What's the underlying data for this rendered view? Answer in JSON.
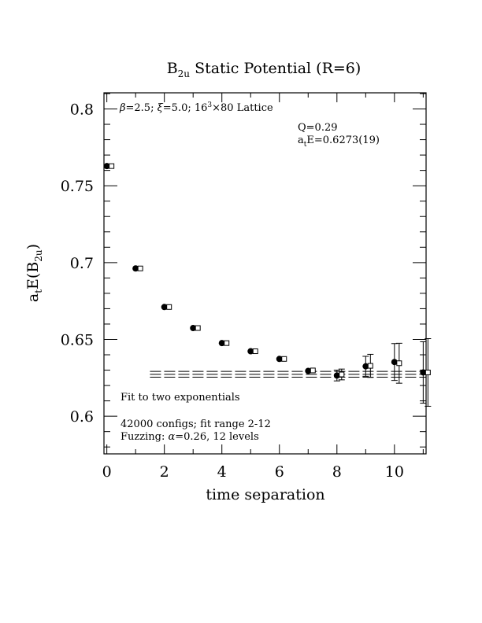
{
  "chart_data": {
    "type": "scatter",
    "title": {
      "main": "B",
      "sub": "2u",
      "rest": " Static Potential (R=6)"
    },
    "xlabel": "time separation",
    "ylabel": {
      "a": "a",
      "a_sub": "t",
      "mid": "E(B",
      "b_sub": "2u",
      "end": ")"
    },
    "xlim": [
      -0.1,
      11.1
    ],
    "ylim": [
      0.5755,
      0.8105
    ],
    "x_ticks": [
      0,
      2,
      4,
      6,
      8,
      10
    ],
    "x_tick_labels": [
      "0",
      "2",
      "4",
      "6",
      "8",
      "10"
    ],
    "y_ticks": [
      0.6,
      0.65,
      0.7,
      0.75,
      0.8
    ],
    "y_tick_labels": [
      "0.6",
      "0.65",
      "0.7",
      "0.75",
      "0.8"
    ],
    "annotations": {
      "lattice": {
        "beta": "β",
        "rest1": "=2.5; ",
        "xi": "ξ",
        "rest2": "=5.0; 16",
        "sup": "3",
        "rest3": "×80 Lattice"
      },
      "q": "Q=0.29",
      "ate": {
        "a": "a",
        "sub": "t",
        "rest": "E=0.6273(19)"
      },
      "fit": "Fit to two exponentials",
      "configs": "42000 configs; fit range 2-12",
      "fuzz": {
        "pre": "Fuzzing: ",
        "alpha": "α",
        "post": "=0.26, 12 levels"
      }
    },
    "series": [
      {
        "marker": "filled-circle",
        "x": [
          0,
          1,
          2,
          3,
          4,
          5,
          6,
          7,
          8,
          9,
          10,
          11
        ],
        "y": [
          0.7628,
          0.6962,
          0.6711,
          0.6574,
          0.6476,
          0.6423,
          0.6373,
          0.6295,
          0.6265,
          0.6325,
          0.6353,
          0.6285
        ],
        "err": [
          0.0006,
          0.0008,
          0.0008,
          0.0008,
          0.0008,
          0.001,
          0.0012,
          0.0018,
          0.0035,
          0.0065,
          0.012,
          0.02
        ]
      },
      {
        "marker": "open-square",
        "x": [
          0,
          1,
          2,
          3,
          4,
          5,
          6,
          7,
          8,
          9,
          10,
          11
        ],
        "y": [
          0.7628,
          0.6962,
          0.6711,
          0.6574,
          0.6476,
          0.6423,
          0.6373,
          0.6298,
          0.6272,
          0.6328,
          0.6345,
          0.6285
        ],
        "err": [
          0.0006,
          0.0008,
          0.0008,
          0.0008,
          0.0008,
          0.001,
          0.0012,
          0.0018,
          0.0035,
          0.0075,
          0.013,
          0.022
        ]
      }
    ],
    "fit": {
      "x_range": [
        1.5,
        11.1
      ],
      "center": 0.6273,
      "error": 0.0019,
      "style": "dashed"
    }
  }
}
